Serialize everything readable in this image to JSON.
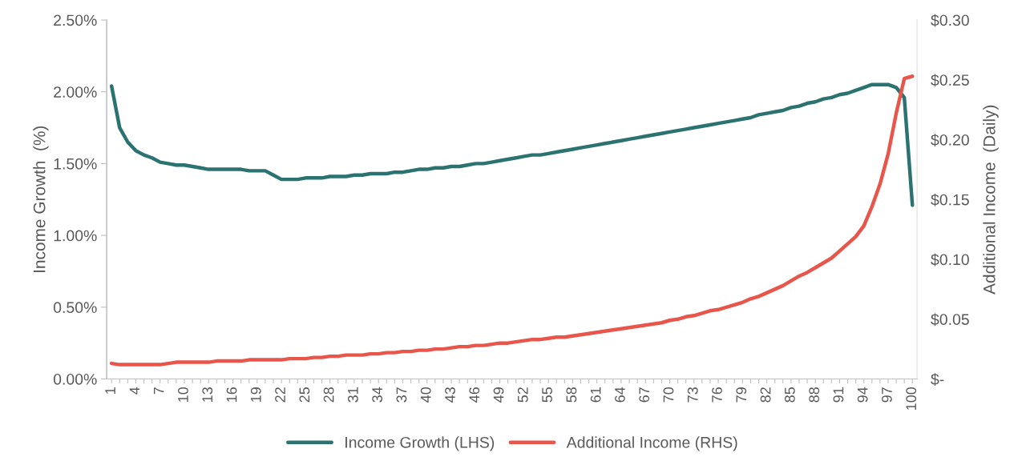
{
  "chart_data": {
    "type": "line",
    "categories": [
      "1",
      null,
      null,
      "4",
      null,
      null,
      "7",
      null,
      null,
      "10",
      null,
      null,
      "13",
      null,
      null,
      "16",
      null,
      null,
      "19",
      null,
      null,
      "22",
      null,
      null,
      "25",
      null,
      null,
      "28",
      null,
      null,
      "31",
      null,
      null,
      "34",
      null,
      null,
      "37",
      null,
      null,
      "40",
      null,
      null,
      "43",
      null,
      null,
      "46",
      null,
      null,
      "49",
      null,
      null,
      "52",
      null,
      null,
      "55",
      null,
      null,
      "58",
      null,
      null,
      "61",
      null,
      null,
      "64",
      null,
      null,
      "67",
      null,
      null,
      "70",
      null,
      null,
      "73",
      null,
      null,
      "76",
      null,
      null,
      "79",
      null,
      null,
      "82",
      null,
      null,
      "85",
      null,
      null,
      "88",
      null,
      null,
      "91",
      null,
      null,
      "94",
      null,
      null,
      "97",
      null,
      null,
      "100"
    ],
    "ylabel": "Income Growth  (%)",
    "y2label": "Additional Income  (Daily)",
    "ylim": [
      0,
      2.5
    ],
    "yticks": [
      {
        "value": 0,
        "label": "0.00%"
      },
      {
        "value": 0.5,
        "label": "0.50%"
      },
      {
        "value": 1.0,
        "label": "1.00%"
      },
      {
        "value": 1.5,
        "label": "1.50%"
      },
      {
        "value": 2.0,
        "label": "2.00%"
      },
      {
        "value": 2.5,
        "label": "2.50%"
      }
    ],
    "y2lim": [
      0,
      0.3
    ],
    "y2ticks": [
      {
        "value": 0,
        "label": "$-"
      },
      {
        "value": 0.05,
        "label": "$0.05"
      },
      {
        "value": 0.1,
        "label": "$0.10"
      },
      {
        "value": 0.15,
        "label": "$0.15"
      },
      {
        "value": 0.2,
        "label": "$0.20"
      },
      {
        "value": 0.25,
        "label": "$0.25"
      },
      {
        "value": 0.3,
        "label": "$0.30"
      }
    ],
    "grid": false,
    "legend": "bottom",
    "marker": "none",
    "line_style": "solid",
    "series": [
      {
        "name": "Income Growth (LHS)",
        "color": "#2a7370",
        "values": [
          2.04,
          1.75,
          1.65,
          1.59,
          1.56,
          1.54,
          1.51,
          1.5,
          1.49,
          1.49,
          1.48,
          1.47,
          1.46,
          1.46,
          1.46,
          1.46,
          1.46,
          1.45,
          1.45,
          1.45,
          1.42,
          1.39,
          1.39,
          1.39,
          1.4,
          1.4,
          1.4,
          1.41,
          1.41,
          1.41,
          1.42,
          1.42,
          1.43,
          1.43,
          1.43,
          1.44,
          1.44,
          1.45,
          1.46,
          1.46,
          1.47,
          1.47,
          1.48,
          1.48,
          1.49,
          1.5,
          1.5,
          1.51,
          1.52,
          1.53,
          1.54,
          1.55,
          1.56,
          1.56,
          1.57,
          1.58,
          1.59,
          1.6,
          1.61,
          1.62,
          1.63,
          1.64,
          1.65,
          1.66,
          1.67,
          1.68,
          1.69,
          1.7,
          1.71,
          1.72,
          1.73,
          1.74,
          1.75,
          1.76,
          1.77,
          1.78,
          1.79,
          1.8,
          1.81,
          1.82,
          1.84,
          1.85,
          1.86,
          1.87,
          1.89,
          1.9,
          1.92,
          1.93,
          1.95,
          1.96,
          1.98,
          1.99,
          2.01,
          2.03,
          2.05,
          2.05,
          2.05,
          2.03,
          1.96,
          1.21
        ]
      },
      {
        "name": "Additional Income (RHS)",
        "color": "#e8554a",
        "axis": "y2",
        "values": [
          0.013,
          0.012,
          0.012,
          0.012,
          0.012,
          0.012,
          0.012,
          0.013,
          0.014,
          0.014,
          0.014,
          0.014,
          0.014,
          0.015,
          0.015,
          0.015,
          0.015,
          0.016,
          0.016,
          0.016,
          0.016,
          0.016,
          0.017,
          0.017,
          0.017,
          0.018,
          0.018,
          0.019,
          0.019,
          0.02,
          0.02,
          0.02,
          0.021,
          0.021,
          0.022,
          0.022,
          0.023,
          0.023,
          0.024,
          0.024,
          0.025,
          0.025,
          0.026,
          0.027,
          0.027,
          0.028,
          0.028,
          0.029,
          0.03,
          0.03,
          0.031,
          0.032,
          0.033,
          0.033,
          0.034,
          0.035,
          0.035,
          0.036,
          0.037,
          0.038,
          0.039,
          0.04,
          0.041,
          0.042,
          0.043,
          0.044,
          0.045,
          0.046,
          0.047,
          0.049,
          0.05,
          0.052,
          0.053,
          0.055,
          0.057,
          0.058,
          0.06,
          0.062,
          0.064,
          0.067,
          0.069,
          0.072,
          0.075,
          0.078,
          0.082,
          0.086,
          0.089,
          0.093,
          0.097,
          0.101,
          0.107,
          0.113,
          0.119,
          0.128,
          0.144,
          0.163,
          0.188,
          0.222,
          0.251,
          0.253
        ]
      }
    ]
  }
}
